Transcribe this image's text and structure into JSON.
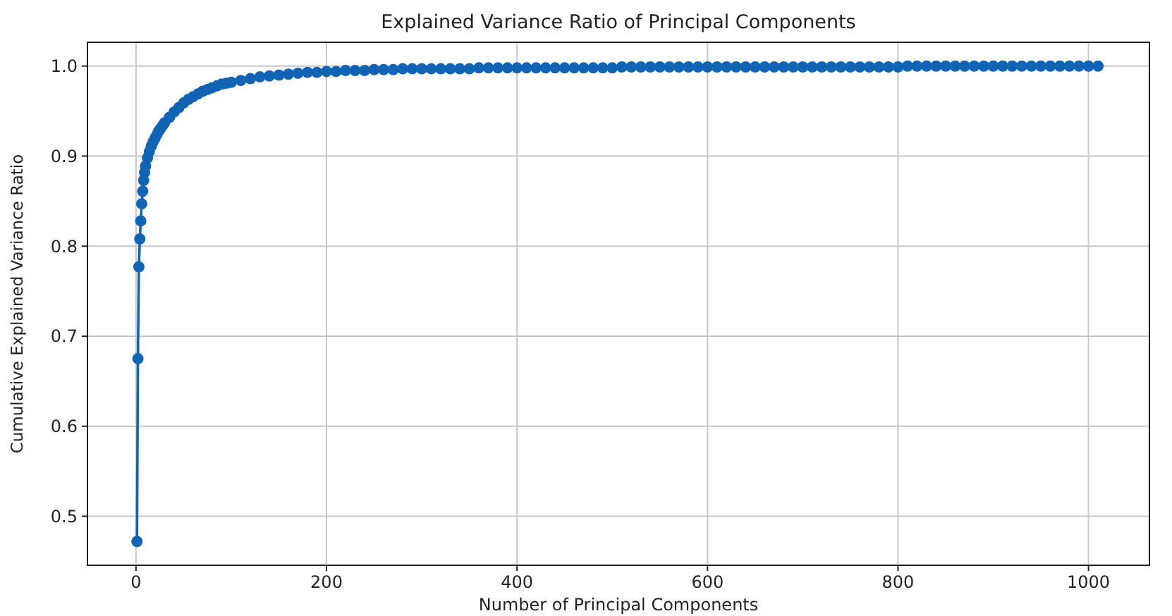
{
  "chart_data": {
    "type": "line",
    "title": "Explained Variance Ratio of Principal Components",
    "xlabel": "Number of Principal Components",
    "ylabel": "Cumulative Explained Variance Ratio",
    "xlim": [
      -51,
      1064
    ],
    "ylim": [
      0.4456,
      1.0264
    ],
    "xticks": [
      0,
      200,
      400,
      600,
      800,
      1000
    ],
    "yticks": [
      0.5,
      0.6,
      0.7,
      0.8,
      0.9,
      {
        "value": 1,
        "label": "1.0"
      }
    ],
    "grid": true,
    "marker": "circle",
    "line_style": "solid",
    "series": [
      {
        "color": "#1164b4",
        "x": [
          1,
          2,
          3,
          4,
          5,
          6,
          7,
          8,
          9,
          10,
          12,
          14,
          16,
          18,
          20,
          22,
          24,
          26,
          28,
          30,
          35,
          40,
          45,
          50,
          55,
          60,
          65,
          70,
          75,
          80,
          85,
          90,
          95,
          100,
          110,
          120,
          130,
          140,
          150,
          160,
          170,
          180,
          190,
          200,
          210,
          220,
          230,
          240,
          250,
          260,
          270,
          280,
          290,
          300,
          310,
          320,
          330,
          340,
          350,
          360,
          370,
          380,
          390,
          400,
          410,
          420,
          430,
          440,
          450,
          460,
          470,
          480,
          490,
          500,
          510,
          520,
          530,
          540,
          550,
          560,
          570,
          580,
          590,
          600,
          610,
          620,
          630,
          640,
          650,
          660,
          670,
          680,
          690,
          700,
          710,
          720,
          730,
          740,
          750,
          760,
          770,
          780,
          790,
          800,
          810,
          820,
          830,
          840,
          850,
          860,
          870,
          880,
          890,
          900,
          910,
          920,
          930,
          940,
          950,
          960,
          970,
          980,
          990,
          1000,
          1010
        ],
        "values": [
          0.472,
          0.675,
          0.777,
          0.808,
          0.828,
          0.847,
          0.861,
          0.873,
          0.882,
          0.889,
          0.898,
          0.905,
          0.911,
          0.916,
          0.92,
          0.924,
          0.928,
          0.931,
          0.934,
          0.937,
          0.943,
          0.949,
          0.954,
          0.959,
          0.963,
          0.966,
          0.969,
          0.972,
          0.974,
          0.976,
          0.978,
          0.98,
          0.981,
          0.982,
          0.984,
          0.986,
          0.988,
          0.989,
          0.99,
          0.991,
          0.992,
          0.993,
          0.993,
          0.994,
          0.994,
          0.995,
          0.995,
          0.995,
          0.996,
          0.996,
          0.996,
          0.997,
          0.997,
          0.997,
          0.997,
          0.997,
          0.997,
          0.997,
          0.997,
          0.998,
          0.998,
          0.998,
          0.998,
          0.998,
          0.998,
          0.998,
          0.998,
          0.998,
          0.998,
          0.998,
          0.998,
          0.998,
          0.998,
          0.998,
          0.999,
          0.999,
          0.999,
          0.999,
          0.999,
          0.999,
          0.999,
          0.999,
          0.999,
          0.999,
          0.999,
          0.999,
          0.999,
          0.999,
          0.999,
          0.999,
          0.999,
          0.999,
          0.999,
          0.999,
          0.999,
          0.999,
          0.999,
          0.999,
          0.999,
          0.999,
          0.999,
          0.999,
          0.999,
          0.999,
          1.0,
          1.0,
          1.0,
          1.0,
          1.0,
          1.0,
          1.0,
          1.0,
          1.0,
          1.0,
          1.0,
          1.0,
          1.0,
          1.0,
          1.0,
          1.0,
          1.0,
          1.0,
          1.0,
          1.0,
          1.0
        ]
      }
    ]
  }
}
